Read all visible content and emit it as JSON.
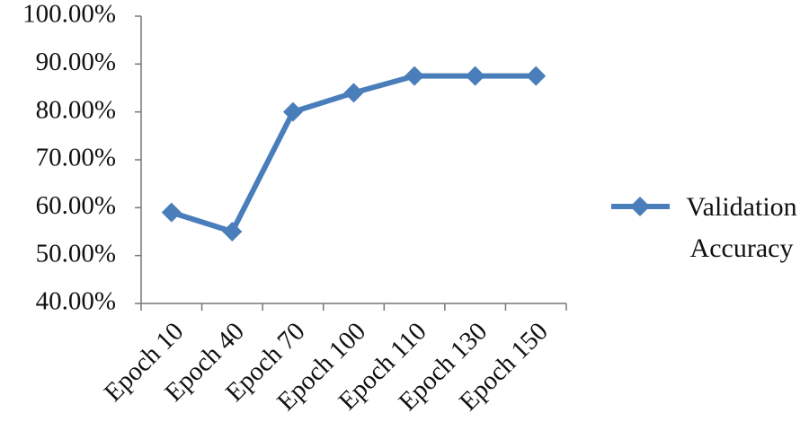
{
  "chart_data": {
    "type": "line",
    "categories": [
      "Epoch 10",
      "Epoch 40",
      "Epoch 70",
      "Epoch 100",
      "Epoch 110",
      "Epoch 130",
      "Epoch 150"
    ],
    "series": [
      {
        "name": "Validation Accuracy",
        "color": "#4a7ebb",
        "values": [
          59,
          55,
          80,
          84,
          87.5,
          87.5,
          87.5
        ]
      }
    ],
    "ylim": [
      40,
      100
    ],
    "yticks": [
      {
        "value": 40,
        "label": "40.00%"
      },
      {
        "value": 50,
        "label": "50.00%"
      },
      {
        "value": 60,
        "label": "60.00%"
      },
      {
        "value": 70,
        "label": "70.00%"
      },
      {
        "value": 80,
        "label": "80.00%"
      },
      {
        "value": 90,
        "label": "90.00%"
      },
      {
        "value": 100,
        "label": "100.00%"
      }
    ],
    "grid": false,
    "legend": "right"
  }
}
